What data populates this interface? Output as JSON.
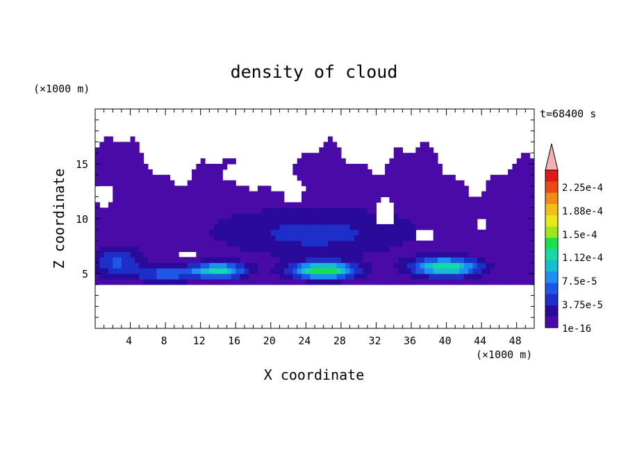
{
  "chart_data": {
    "type": "heatmap",
    "title": "density of cloud",
    "time_label": "t=68400 s",
    "xlabel": "X coordinate",
    "ylabel": "Z coordinate",
    "x_unit": "(×1000 m)",
    "y_unit": "(×1000 m)",
    "xlim": [
      0,
      50
    ],
    "ylim": [
      0,
      20
    ],
    "x_ticks": [
      "4",
      "8",
      "12",
      "16",
      "20",
      "24",
      "28",
      "32",
      "36",
      "40",
      "44",
      "48"
    ],
    "y_ticks": [
      "5",
      "10",
      "15"
    ],
    "colorbar": {
      "labels": [
        "2.25e-4",
        "1.88e-4",
        "1.5e-4",
        "1.12e-4",
        "7.5e-5",
        "3.75e-5",
        "1e-16"
      ],
      "colors": [
        "#4a0aa8",
        "#2a0a9a",
        "#1d2fc8",
        "#1e56e6",
        "#1e8ef0",
        "#18bcd0",
        "#18d8a8",
        "#18e050",
        "#9ae818",
        "#e8e818",
        "#f0c018",
        "#f08a18",
        "#e84a18",
        "#e01818"
      ],
      "overflow_color": "#f4b0b0"
    },
    "cloud_layer": {
      "base_z": 4.0,
      "top_z_range": [
        12.5,
        17.8
      ],
      "peak_x": [
        26,
        40,
        14
      ],
      "peak_z": 5.3,
      "max_value": 0.00011
    }
  }
}
